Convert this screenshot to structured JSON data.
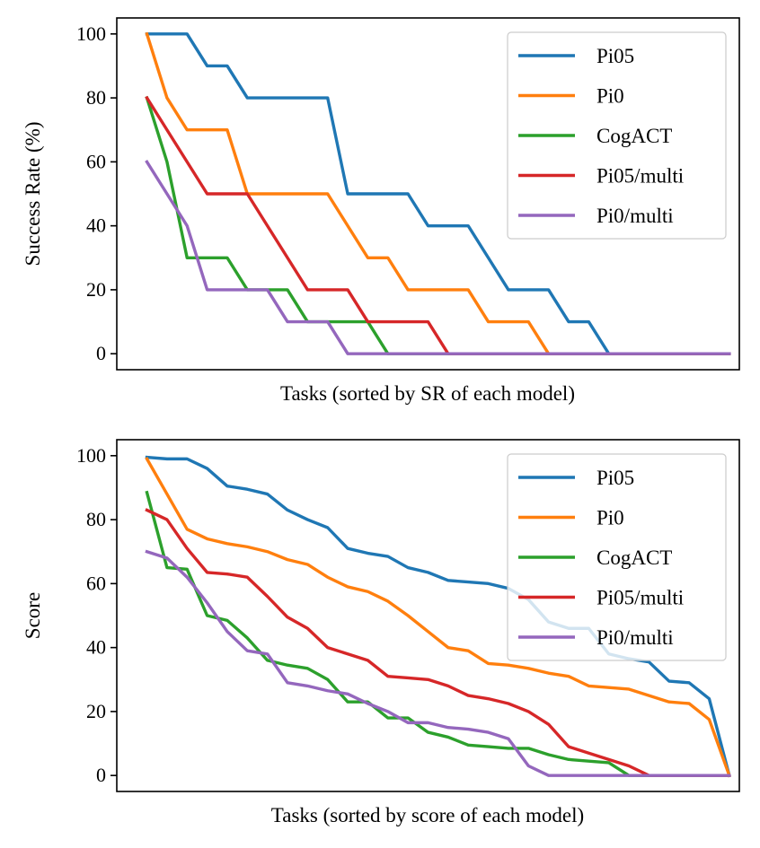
{
  "chart_data": [
    {
      "type": "line",
      "xlabel": "Tasks (sorted by SR of each model)",
      "ylabel": "Success Rate (%)",
      "ylim": [
        -5,
        105
      ],
      "yticks": [
        0,
        20,
        40,
        60,
        80,
        100
      ],
      "xlim": [
        -1.5,
        29.5
      ],
      "grid": false,
      "legend_position": "top-right",
      "series": [
        {
          "name": "Pi05",
          "color": "#1f77b4",
          "values": [
            100,
            100,
            100,
            90,
            90,
            80,
            80,
            80,
            80,
            80,
            50,
            50,
            50,
            50,
            40,
            40,
            40,
            30,
            20,
            20,
            20,
            10,
            10,
            0,
            0,
            0,
            0,
            0,
            0,
            0
          ]
        },
        {
          "name": "Pi0",
          "color": "#ff7f0e",
          "values": [
            100,
            80,
            70,
            70,
            70,
            50,
            50,
            50,
            50,
            50,
            40,
            30,
            30,
            20,
            20,
            20,
            20,
            10,
            10,
            10,
            0,
            0,
            0,
            0,
            0,
            0,
            0,
            0,
            0,
            0
          ]
        },
        {
          "name": "CogACT",
          "color": "#2ca02c",
          "values": [
            80,
            60,
            30,
            30,
            30,
            20,
            20,
            20,
            10,
            10,
            10,
            10,
            0,
            0,
            0,
            0,
            0,
            0,
            0,
            0,
            0,
            0,
            0,
            0,
            0,
            0,
            0,
            0,
            0,
            0
          ]
        },
        {
          "name": "Pi05/multi",
          "color": "#d62728",
          "values": [
            80,
            70,
            60,
            50,
            50,
            50,
            40,
            30,
            20,
            20,
            20,
            10,
            10,
            10,
            10,
            0,
            0,
            0,
            0,
            0,
            0,
            0,
            0,
            0,
            0,
            0,
            0,
            0,
            0,
            0
          ]
        },
        {
          "name": "Pi0/multi",
          "color": "#9467bd",
          "values": [
            60,
            50,
            40,
            20,
            20,
            20,
            20,
            10,
            10,
            10,
            0,
            0,
            0,
            0,
            0,
            0,
            0,
            0,
            0,
            0,
            0,
            0,
            0,
            0,
            0,
            0,
            0,
            0,
            0,
            0
          ]
        }
      ]
    },
    {
      "type": "line",
      "xlabel": "Tasks (sorted by score of each model)",
      "ylabel": "Score",
      "ylim": [
        -5,
        105
      ],
      "yticks": [
        0,
        20,
        40,
        60,
        80,
        100
      ],
      "xlim": [
        -1.5,
        29.5
      ],
      "grid": false,
      "legend_position": "top-right",
      "series": [
        {
          "name": "Pi05",
          "color": "#1f77b4",
          "values": [
            99.5,
            99,
            99,
            96,
            90.5,
            89.5,
            88,
            83,
            80,
            77.5,
            71,
            69.5,
            68.5,
            65,
            63.5,
            61,
            60.5,
            60,
            58.5,
            55,
            48,
            46,
            46,
            38,
            36.5,
            35.5,
            29.5,
            29,
            24,
            0
          ]
        },
        {
          "name": "Pi0",
          "color": "#ff7f0e",
          "values": [
            99,
            88,
            77,
            74,
            72.5,
            71.5,
            70,
            67.5,
            66,
            62,
            59,
            57.5,
            54.5,
            50,
            45,
            40,
            39,
            35,
            34.5,
            33.5,
            32,
            31,
            28,
            27.5,
            27,
            25,
            23,
            22.5,
            17.5,
            0
          ]
        },
        {
          "name": "CogACT",
          "color": "#2ca02c",
          "values": [
            88.5,
            65,
            64.5,
            50,
            48.5,
            43,
            36,
            34.5,
            33.5,
            30,
            23,
            23,
            18,
            18,
            13.5,
            12,
            9.5,
            9,
            8.5,
            8.5,
            6.5,
            5,
            4.5,
            4,
            0,
            0,
            0,
            0,
            0,
            0
          ]
        },
        {
          "name": "Pi05/multi",
          "color": "#d62728",
          "values": [
            83,
            80,
            71,
            63.5,
            63,
            62,
            56,
            49.5,
            46,
            40,
            38,
            36,
            31,
            30.5,
            30,
            28,
            25,
            24,
            22.5,
            20,
            16,
            9,
            7,
            5,
            3,
            0,
            0,
            0,
            0,
            0
          ]
        },
        {
          "name": "Pi0/multi",
          "color": "#9467bd",
          "values": [
            70,
            68,
            62,
            54,
            45,
            39,
            38,
            29,
            28,
            26.5,
            25.5,
            22.5,
            20,
            16.5,
            16.5,
            15,
            14.5,
            13.5,
            11.5,
            3,
            0,
            0,
            0,
            0,
            0,
            0,
            0,
            0,
            0,
            0
          ]
        }
      ]
    }
  ]
}
